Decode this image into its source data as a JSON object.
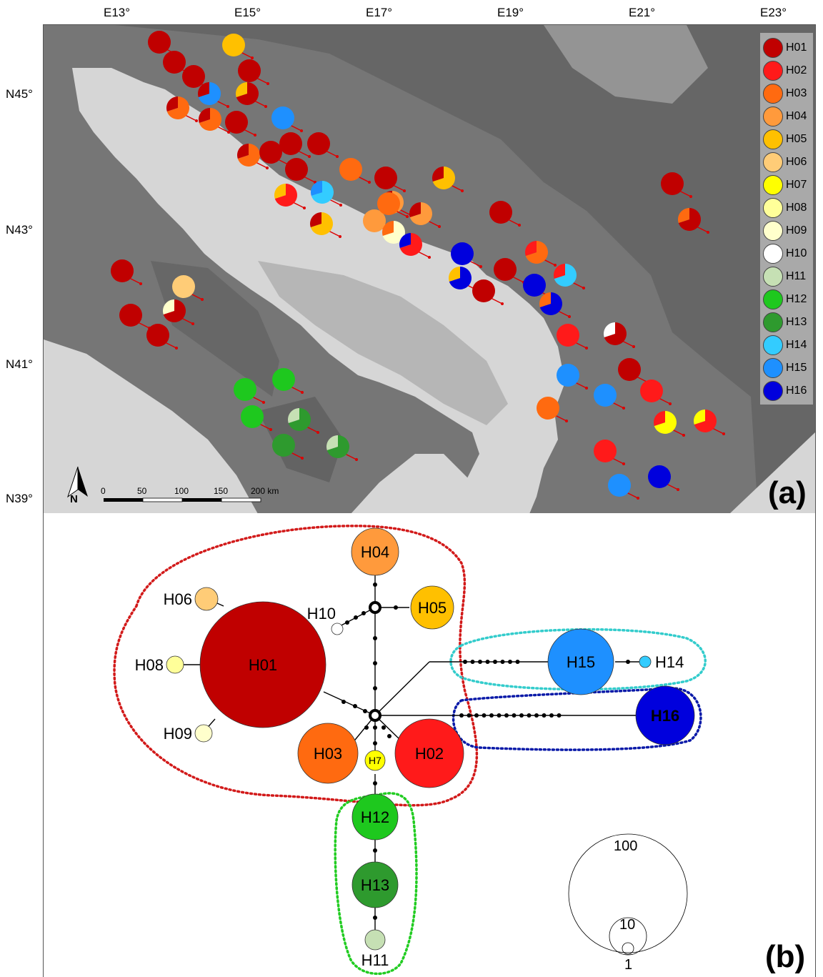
{
  "map": {
    "top_axis": [
      "E13°",
      "E15°",
      "E17°",
      "E19°",
      "E21°",
      "E23°"
    ],
    "left_axis": [
      "N45°",
      "N43°",
      "N41°",
      "N39°"
    ],
    "scalebar_ticks": [
      "0",
      "50",
      "100",
      "150",
      "200 km"
    ],
    "north_label": "N",
    "panel_label": "(a)",
    "colors": {
      "H01": "#c00000",
      "H02": "#ff1a1a",
      "H03": "#ff6a10",
      "H04": "#ff9a3c",
      "H05": "#ffc000",
      "H06": "#ffcc77",
      "H07": "#ffff00",
      "H08": "#ffff99",
      "H09": "#ffffcc",
      "H10": "#ffffff",
      "H11": "#c6e0b4",
      "H12": "#1ec81e",
      "H13": "#2e9a2e",
      "H14": "#33ccff",
      "H15": "#1e90ff",
      "H16": "#0000dd"
    },
    "legend": [
      "H01",
      "H02",
      "H03",
      "H04",
      "H05",
      "H06",
      "H07",
      "H08",
      "H09",
      "H10",
      "H11",
      "H12",
      "H13",
      "H14",
      "H15",
      "H16"
    ],
    "sites": [
      {
        "hap": [
          "H01"
        ]
      },
      {
        "hap": [
          "H05"
        ]
      },
      {
        "hap": [
          "H01"
        ]
      },
      {
        "hap": [
          "H01"
        ]
      },
      {
        "hap": [
          "H01"
        ]
      },
      {
        "hap": [
          "H15",
          "H01"
        ]
      },
      {
        "hap": [
          "H01",
          "H05"
        ]
      },
      {
        "hap": [
          "H03",
          "H01"
        ]
      },
      {
        "hap": [
          "H03",
          "H01"
        ]
      },
      {
        "hap": [
          "H01"
        ]
      },
      {
        "hap": [
          "H15"
        ]
      },
      {
        "hap": [
          "H03",
          "H01"
        ]
      },
      {
        "hap": [
          "H01"
        ]
      },
      {
        "hap": [
          "H01"
        ]
      },
      {
        "hap": [
          "H01"
        ]
      },
      {
        "hap": [
          "H01"
        ]
      },
      {
        "hap": [
          "H03"
        ]
      },
      {
        "hap": [
          "H02",
          "H05"
        ]
      },
      {
        "hap": [
          "H14",
          "H15"
        ]
      },
      {
        "hap": [
          "H05",
          "H01"
        ]
      },
      {
        "hap": [
          "H01"
        ]
      },
      {
        "hap": [
          "H05",
          "H01"
        ]
      },
      {
        "hap": [
          "H04"
        ]
      },
      {
        "hap": [
          "H04",
          "H01"
        ]
      },
      {
        "hap": [
          "H04",
          "H01"
        ]
      },
      {
        "hap": [
          "H09",
          "H03"
        ]
      },
      {
        "hap": [
          "H02",
          "H16"
        ]
      },
      {
        "hap": [
          "H03"
        ]
      },
      {
        "hap": [
          "H01"
        ]
      },
      {
        "hap": [
          "H16"
        ]
      },
      {
        "hap": [
          "H16",
          "H05"
        ]
      },
      {
        "hap": [
          "H01"
        ]
      },
      {
        "hap": [
          "H01"
        ]
      },
      {
        "hap": [
          "H03",
          "H02"
        ]
      },
      {
        "hap": [
          "H14",
          "H02"
        ]
      },
      {
        "hap": [
          "H16"
        ]
      },
      {
        "hap": [
          "H16",
          "H03"
        ]
      },
      {
        "hap": [
          "H01"
        ]
      },
      {
        "hap": [
          "H01"
        ]
      },
      {
        "hap": [
          "H01"
        ]
      },
      {
        "hap": [
          "H06"
        ]
      },
      {
        "hap": [
          "H01",
          "H09"
        ]
      },
      {
        "hap": [
          "H01"
        ]
      },
      {
        "hap": [
          "H01",
          "H03"
        ]
      },
      {
        "hap": [
          "H02"
        ]
      },
      {
        "hap": [
          "H01",
          "H10"
        ]
      },
      {
        "hap": [
          "H12"
        ]
      },
      {
        "hap": [
          "H12"
        ]
      },
      {
        "hap": [
          "H12"
        ]
      },
      {
        "hap": [
          "H13",
          "H11"
        ]
      },
      {
        "hap": [
          "H13"
        ]
      },
      {
        "hap": [
          "H13",
          "H11"
        ]
      },
      {
        "hap": [
          "H15"
        ]
      },
      {
        "hap": [
          "H01"
        ]
      },
      {
        "hap": [
          "H15"
        ]
      },
      {
        "hap": [
          "H02"
        ]
      },
      {
        "hap": [
          "H03"
        ]
      },
      {
        "hap": [
          "H07",
          "H02"
        ]
      },
      {
        "hap": [
          "H02",
          "H07"
        ]
      },
      {
        "hap": [
          "H02"
        ]
      },
      {
        "hap": [
          "H15"
        ]
      },
      {
        "hap": [
          "H16"
        ]
      }
    ]
  },
  "network": {
    "panel_label": "(b)",
    "nodes": [
      {
        "id": "H01",
        "label": "H01"
      },
      {
        "id": "H02",
        "label": "H02"
      },
      {
        "id": "H03",
        "label": "H03"
      },
      {
        "id": "H04",
        "label": "H04"
      },
      {
        "id": "H05",
        "label": "H05"
      },
      {
        "id": "H06",
        "label": "H06"
      },
      {
        "id": "H07",
        "label": "H7"
      },
      {
        "id": "H08",
        "label": "H08"
      },
      {
        "id": "H09",
        "label": "H09"
      },
      {
        "id": "H10",
        "label": "H10"
      },
      {
        "id": "H11",
        "label": "H11"
      },
      {
        "id": "H12",
        "label": "H12"
      },
      {
        "id": "H13",
        "label": "H13"
      },
      {
        "id": "H14",
        "label": "H14"
      },
      {
        "id": "H15",
        "label": "H15"
      },
      {
        "id": "H16",
        "label": "H16"
      }
    ],
    "size_legend": [
      "100",
      "10",
      "1"
    ]
  }
}
